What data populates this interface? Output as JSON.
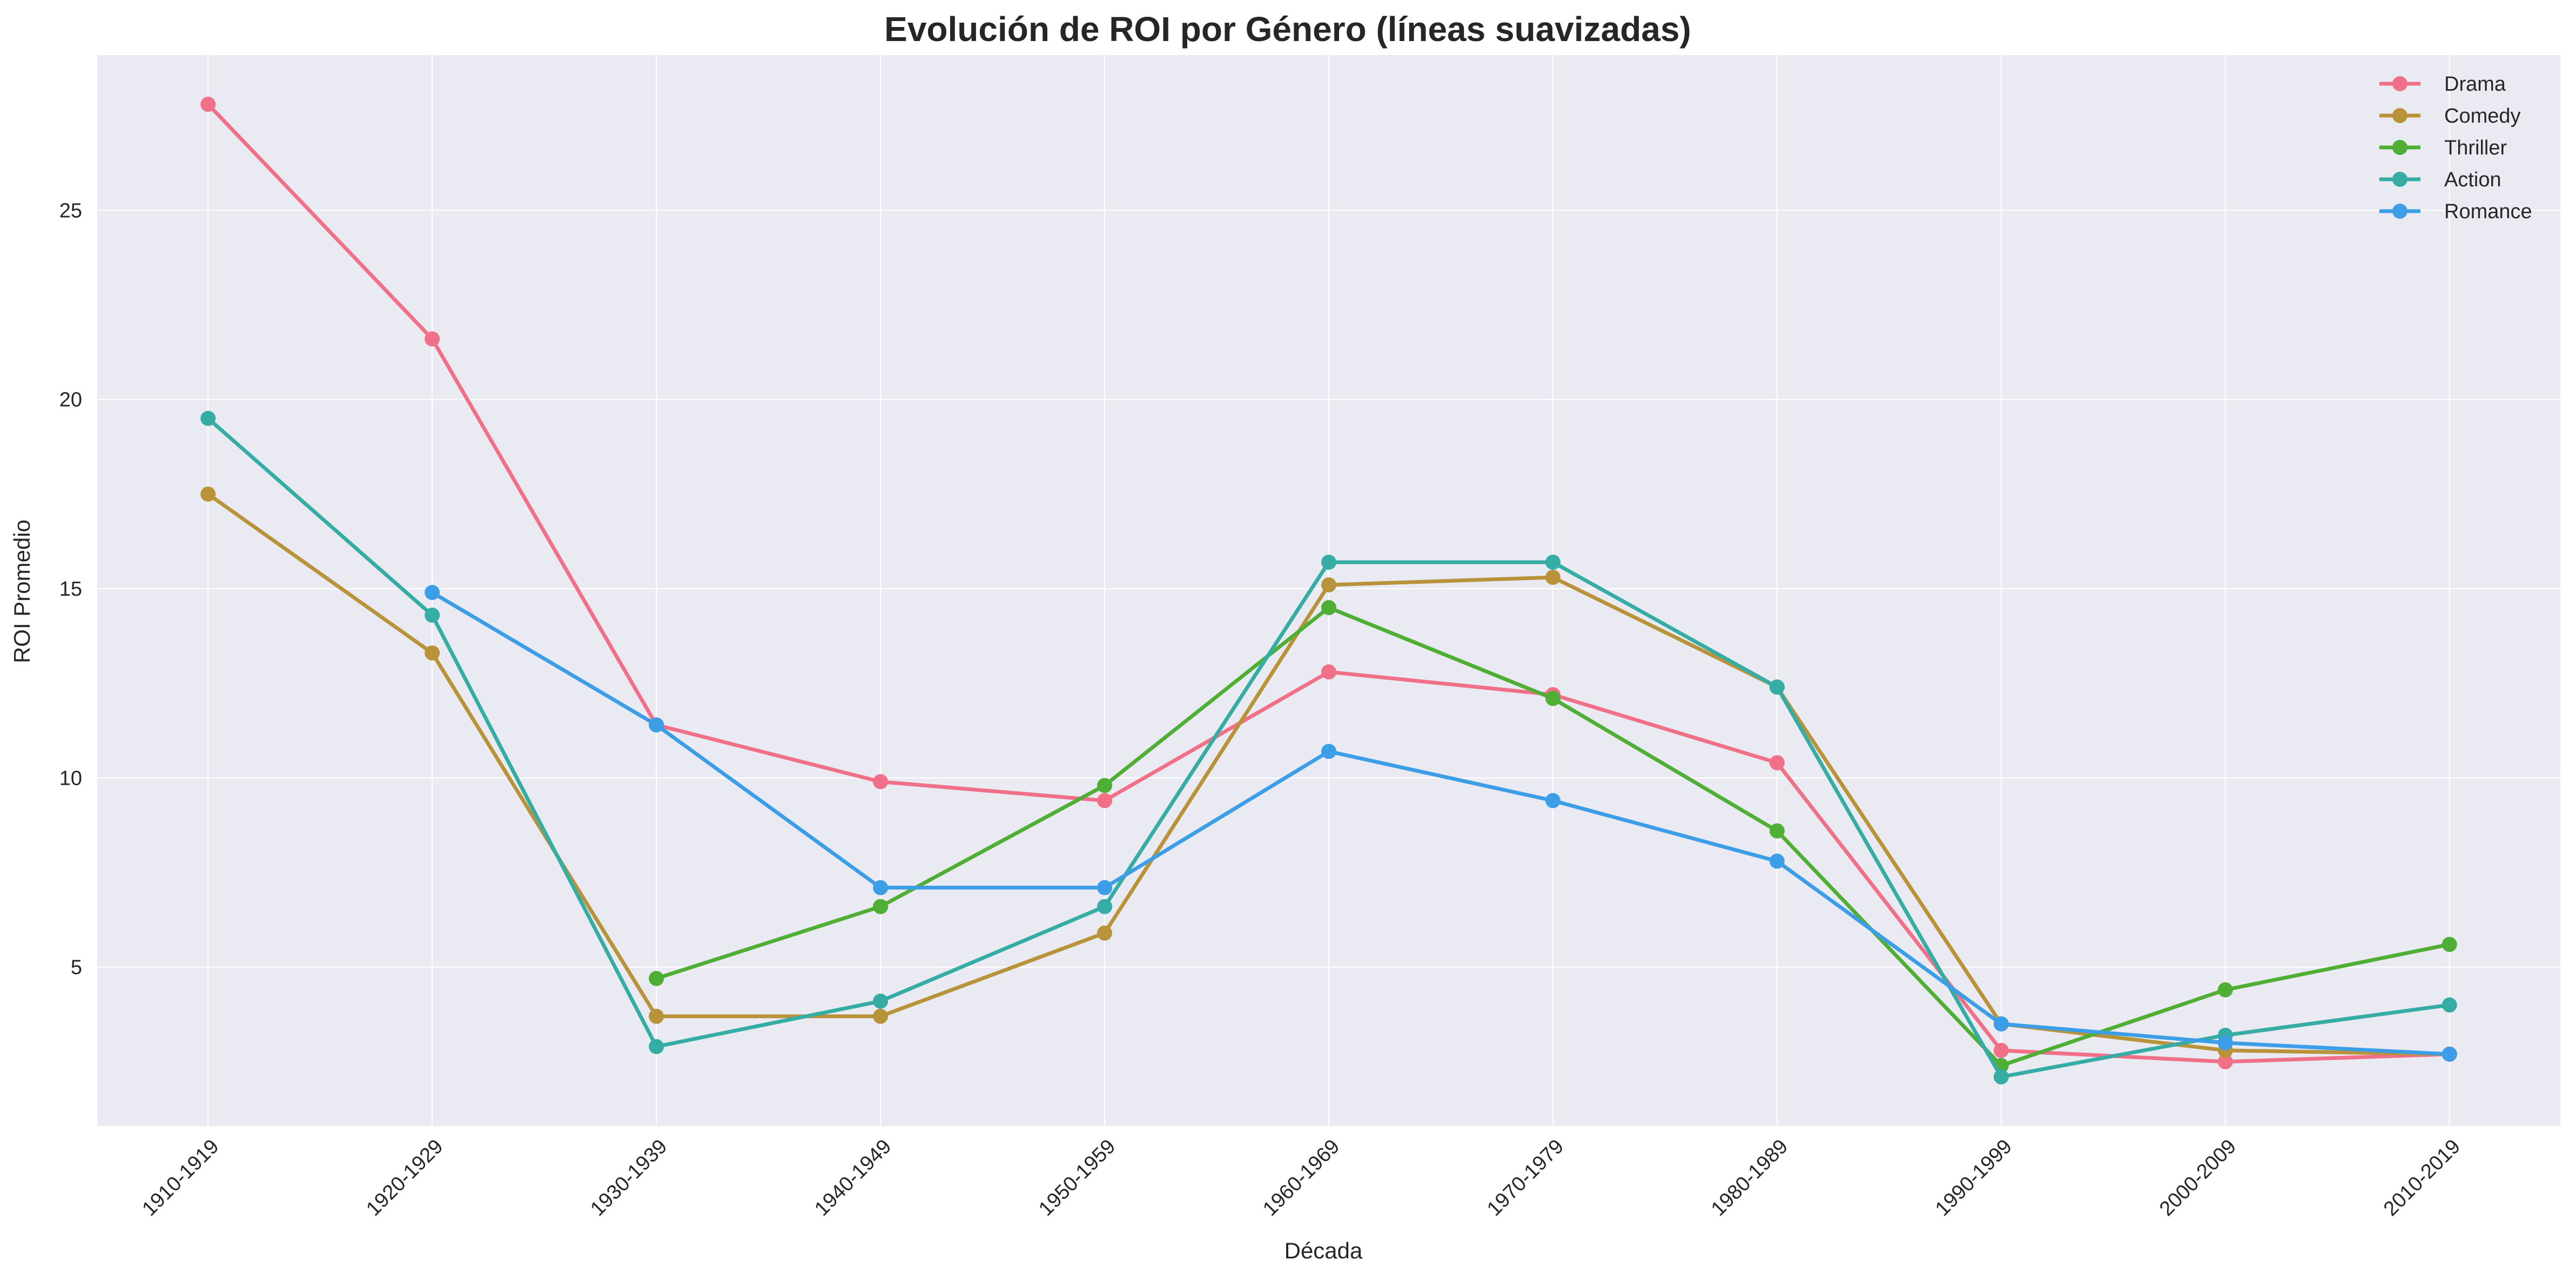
{
  "chart_data": {
    "type": "line",
    "title": "Evolución de ROI por Género (líneas suavizadas)",
    "xlabel": "Década",
    "ylabel": "ROI Promedio",
    "categories": [
      "1910-1919",
      "1920-1929",
      "1930-1939",
      "1940-1949",
      "1950-1959",
      "1960-1969",
      "1970-1979",
      "1980-1989",
      "1990-1999",
      "2000-2009",
      "2010-2019"
    ],
    "yticks": [
      5,
      10,
      15,
      20,
      25
    ],
    "ylim": [
      0.8,
      29.1
    ],
    "grid": true,
    "legend_position": "top-right",
    "background": "#eaeaf2",
    "series": [
      {
        "name": "Drama",
        "color": "#f07088",
        "values": [
          27.8,
          21.6,
          11.4,
          9.9,
          9.4,
          12.8,
          12.2,
          10.4,
          2.8,
          2.5,
          2.7
        ]
      },
      {
        "name": "Comedy",
        "color": "#b8933a",
        "values": [
          17.5,
          13.3,
          3.7,
          3.7,
          5.9,
          15.1,
          15.3,
          12.4,
          3.5,
          2.8,
          2.7
        ]
      },
      {
        "name": "Thriller",
        "color": "#4fae34",
        "values": [
          null,
          null,
          4.7,
          6.6,
          9.8,
          14.5,
          12.1,
          8.6,
          2.4,
          4.4,
          5.6
        ]
      },
      {
        "name": "Action",
        "color": "#36ada4",
        "values": [
          19.5,
          14.3,
          2.9,
          4.1,
          6.6,
          15.7,
          15.7,
          12.4,
          2.1,
          3.2,
          4.0
        ]
      },
      {
        "name": "Romance",
        "color": "#3c9ee6",
        "values": [
          null,
          14.9,
          11.4,
          7.1,
          7.1,
          10.7,
          9.4,
          7.8,
          3.5,
          3.0,
          2.7
        ]
      }
    ]
  }
}
